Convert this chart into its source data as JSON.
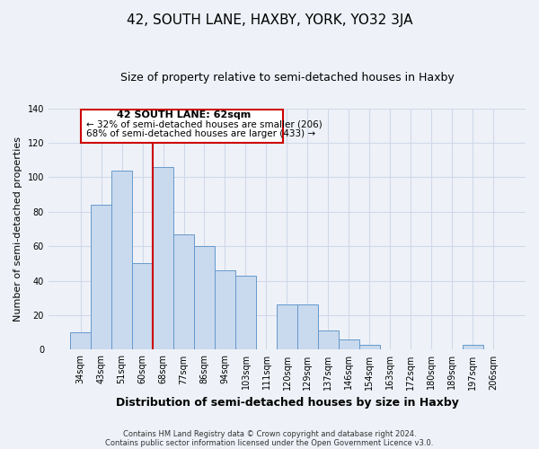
{
  "title": "42, SOUTH LANE, HAXBY, YORK, YO32 3JA",
  "subtitle": "Size of property relative to semi-detached houses in Haxby",
  "xlabel": "Distribution of semi-detached houses by size in Haxby",
  "ylabel": "Number of semi-detached properties",
  "bar_labels": [
    "34sqm",
    "43sqm",
    "51sqm",
    "60sqm",
    "68sqm",
    "77sqm",
    "86sqm",
    "94sqm",
    "103sqm",
    "111sqm",
    "120sqm",
    "129sqm",
    "137sqm",
    "146sqm",
    "154sqm",
    "163sqm",
    "172sqm",
    "180sqm",
    "189sqm",
    "197sqm",
    "206sqm"
  ],
  "bar_values": [
    10,
    84,
    104,
    50,
    106,
    67,
    60,
    46,
    43,
    0,
    26,
    26,
    11,
    6,
    3,
    0,
    0,
    0,
    0,
    3,
    0
  ],
  "bar_color": "#c9d9ee",
  "bar_edge_color": "#6699cc",
  "vline_color": "#cc0000",
  "annotation_title": "42 SOUTH LANE: 62sqm",
  "annotation_line1": "← 32% of semi-detached houses are smaller (206)",
  "annotation_line2": "68% of semi-detached houses are larger (433) →",
  "ylim": [
    0,
    140
  ],
  "yticks": [
    0,
    20,
    40,
    60,
    80,
    100,
    120,
    140
  ],
  "footer1": "Contains HM Land Registry data © Crown copyright and database right 2024.",
  "footer2": "Contains public sector information licensed under the Open Government Licence v3.0.",
  "bg_color": "#eef2f8",
  "grid_color": "#d0d8e8"
}
